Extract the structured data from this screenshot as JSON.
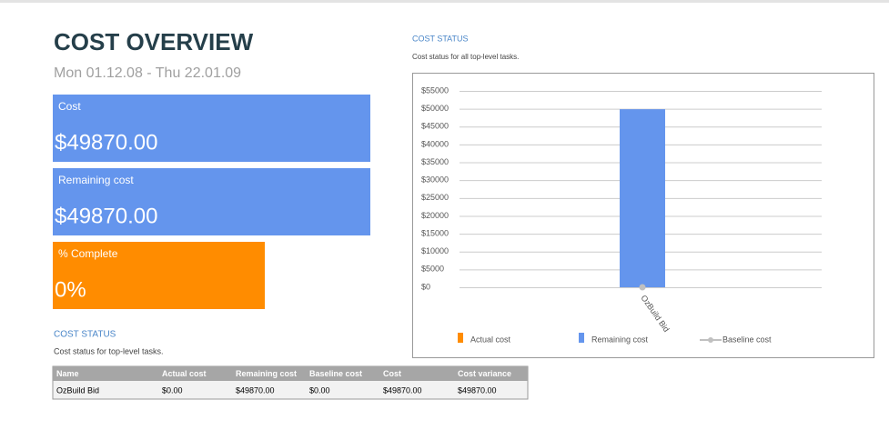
{
  "header": {
    "title": "COST OVERVIEW",
    "date_range": "Mon 01.12.08 - Thu 22.01.09"
  },
  "cards": [
    {
      "label": "Cost",
      "value": "$49870.00"
    },
    {
      "label": "Remaining cost",
      "value": "$49870.00"
    },
    {
      "label": "% Complete",
      "value": "0%"
    }
  ],
  "table_section": {
    "title": "COST STATUS",
    "subtitle": "Cost status for top-level tasks."
  },
  "table": {
    "columns": [
      "Name",
      "Actual cost",
      "Remaining cost",
      "Baseline cost",
      "Cost",
      "Cost variance"
    ],
    "rows": [
      [
        "OzBuild Bid",
        "$0.00",
        "$49870.00",
        "$0.00",
        "$49870.00",
        "$49870.00"
      ]
    ]
  },
  "chart_data": {
    "type": "bar",
    "title": "COST STATUS",
    "subtitle": "Cost status for all top-level tasks.",
    "categories": [
      "OzBuild Bid"
    ],
    "series": [
      {
        "name": "Actual cost",
        "color": "#ff8c00",
        "values": [
          0
        ]
      },
      {
        "name": "Remaining cost",
        "color": "#6495ed",
        "values": [
          49870
        ]
      },
      {
        "name": "Baseline cost",
        "color": "#c0c0c0",
        "type": "line",
        "values": [
          0
        ]
      }
    ],
    "ylim": [
      0,
      55000
    ],
    "yticks": [
      {
        "value": 0,
        "label": "$0"
      },
      {
        "value": 5000,
        "label": "$5000"
      },
      {
        "value": 10000,
        "label": "$10000"
      },
      {
        "value": 15000,
        "label": "$15000"
      },
      {
        "value": 20000,
        "label": "$20000"
      },
      {
        "value": 25000,
        "label": "$25000"
      },
      {
        "value": 30000,
        "label": "$30000"
      },
      {
        "value": 35000,
        "label": "$35000"
      },
      {
        "value": 40000,
        "label": "$40000"
      },
      {
        "value": 45000,
        "label": "$45000"
      },
      {
        "value": 50000,
        "label": "$50000"
      },
      {
        "value": 55000,
        "label": "$55000"
      }
    ],
    "grid": true,
    "legend": "bottom"
  }
}
